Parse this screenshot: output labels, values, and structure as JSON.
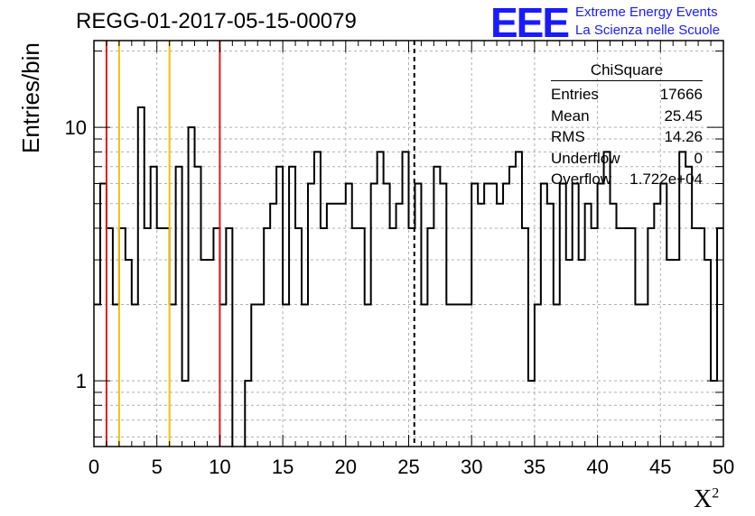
{
  "chart_data": {
    "type": "histogram",
    "title": "REGG-01-2017-05-15-00079",
    "xlabel": "X",
    "xlabel_superscript": "2",
    "ylabel": "Entries/bin",
    "xlim": [
      0,
      50
    ],
    "ylim": [
      0.55,
      22
    ],
    "y_scale": "log",
    "grid": true,
    "bin_width": 0.5,
    "x_ticks": [
      "0",
      "5",
      "10",
      "15",
      "20",
      "25",
      "30",
      "35",
      "40",
      "45",
      "50"
    ],
    "y_ticks": [
      "1",
      "10"
    ],
    "bin_values": [
      2,
      6,
      4,
      2,
      4,
      3,
      2,
      12,
      4,
      7,
      4,
      4,
      2,
      7,
      1,
      10,
      7,
      3,
      3,
      4,
      2,
      4,
      0.1,
      0.1,
      1,
      2,
      2,
      4,
      5,
      7,
      2,
      7,
      4,
      2,
      6,
      8,
      4,
      5,
      5,
      5,
      6,
      4,
      4,
      2,
      6,
      8,
      6,
      4,
      5,
      8,
      4,
      6,
      2,
      4,
      7,
      6,
      2,
      2,
      2,
      2,
      6,
      5,
      6,
      6,
      5,
      6,
      7,
      8,
      4,
      1,
      2,
      6,
      5,
      2,
      6,
      3,
      6,
      3,
      5,
      4,
      6,
      8,
      5,
      4,
      4,
      4,
      2,
      2,
      4,
      5,
      6,
      3,
      3,
      8,
      7,
      4,
      4,
      3,
      1,
      4
    ],
    "vertical_lines": [
      {
        "x": 1,
        "color": "#e01a1a",
        "style": "solid"
      },
      {
        "x": 2,
        "color": "#f2c200",
        "style": "solid"
      },
      {
        "x": 6,
        "color": "#f2c200",
        "style": "solid"
      },
      {
        "x": 10,
        "color": "#e01a1a",
        "style": "solid"
      },
      {
        "x": 25.45,
        "color": "#000000",
        "style": "dashed"
      }
    ],
    "stats_box": {
      "title": "ChiSquare",
      "rows": [
        {
          "label": "Entries",
          "value": "17666"
        },
        {
          "label": "Mean",
          "value": "25.45"
        },
        {
          "label": "RMS",
          "value": "14.26"
        },
        {
          "label": "Underflow",
          "value": "0"
        },
        {
          "label": "Overflow",
          "value": "1.722e+04"
        }
      ]
    }
  },
  "logo": {
    "text": "EEE",
    "line1": "Extreme Energy Events",
    "line2": "La Scienza nelle Scuole",
    "color": "#1a1aff"
  }
}
